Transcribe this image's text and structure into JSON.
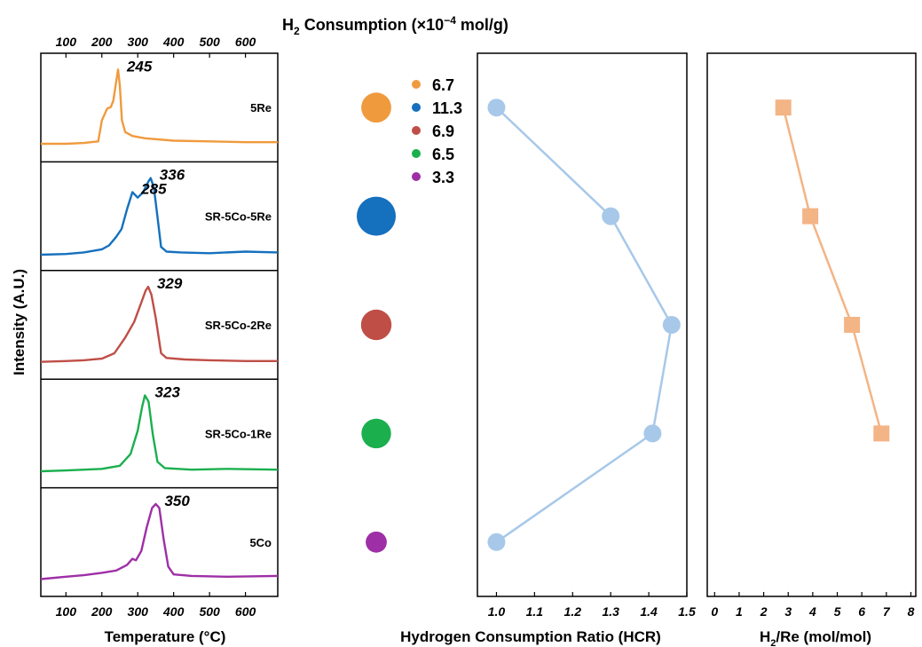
{
  "chart_data": [
    {
      "type": "line",
      "panel": "tpr",
      "title": "",
      "xlabel": "Temperature (°C)",
      "top_xlabel": "H2 Consumption (×10−4 mol/g)",
      "ylabel": "Intensity (A.U.)",
      "xlim": [
        30,
        690
      ],
      "x_ticks": [
        100,
        200,
        300,
        400,
        500,
        600
      ],
      "x_tick_labels": [
        "100",
        "200",
        "300",
        "400",
        "500",
        "600"
      ],
      "series": [
        {
          "name": "5Re",
          "color": "#F09A3E",
          "peaks": [
            {
              "x": 245,
              "label": "245"
            }
          ],
          "points": [
            [
              30,
              0.05
            ],
            [
              100,
              0.05
            ],
            [
              150,
              0.06
            ],
            [
              190,
              0.08
            ],
            [
              200,
              0.35
            ],
            [
              215,
              0.5
            ],
            [
              225,
              0.52
            ],
            [
              232,
              0.6
            ],
            [
              240,
              0.85
            ],
            [
              245,
              1.0
            ],
            [
              250,
              0.8
            ],
            [
              256,
              0.35
            ],
            [
              265,
              0.2
            ],
            [
              285,
              0.15
            ],
            [
              320,
              0.12
            ],
            [
              400,
              0.09
            ],
            [
              500,
              0.08
            ],
            [
              600,
              0.07
            ],
            [
              690,
              0.07
            ]
          ]
        },
        {
          "name": "SR-5Co-5Re",
          "color": "#1570BE",
          "peaks": [
            {
              "x": 285,
              "label": "285"
            },
            {
              "x": 336,
              "label": "336"
            }
          ],
          "points": [
            [
              30,
              0.02
            ],
            [
              100,
              0.03
            ],
            [
              150,
              0.05
            ],
            [
              200,
              0.09
            ],
            [
              220,
              0.14
            ],
            [
              240,
              0.25
            ],
            [
              255,
              0.35
            ],
            [
              270,
              0.6
            ],
            [
              285,
              0.82
            ],
            [
              300,
              0.75
            ],
            [
              315,
              0.82
            ],
            [
              330,
              0.96
            ],
            [
              336,
              1.0
            ],
            [
              345,
              0.88
            ],
            [
              355,
              0.5
            ],
            [
              365,
              0.12
            ],
            [
              380,
              0.06
            ],
            [
              420,
              0.05
            ],
            [
              500,
              0.04
            ],
            [
              600,
              0.06
            ],
            [
              690,
              0.05
            ]
          ]
        },
        {
          "name": "SR-5Co-2Re",
          "color": "#BF4E47",
          "peaks": [
            {
              "x": 329,
              "label": "329"
            }
          ],
          "points": [
            [
              30,
              0.04
            ],
            [
              100,
              0.05
            ],
            [
              150,
              0.06
            ],
            [
              200,
              0.08
            ],
            [
              235,
              0.15
            ],
            [
              265,
              0.35
            ],
            [
              290,
              0.55
            ],
            [
              310,
              0.8
            ],
            [
              322,
              0.95
            ],
            [
              329,
              1.0
            ],
            [
              338,
              0.9
            ],
            [
              350,
              0.6
            ],
            [
              365,
              0.15
            ],
            [
              380,
              0.09
            ],
            [
              430,
              0.07
            ],
            [
              500,
              0.06
            ],
            [
              600,
              0.05
            ],
            [
              690,
              0.05
            ]
          ]
        },
        {
          "name": "SR-5Co-1Re",
          "color": "#1BAF4E",
          "peaks": [
            {
              "x": 323,
              "label": "323"
            }
          ],
          "points": [
            [
              30,
              0.03
            ],
            [
              100,
              0.04
            ],
            [
              150,
              0.05
            ],
            [
              200,
              0.06
            ],
            [
              250,
              0.1
            ],
            [
              280,
              0.25
            ],
            [
              300,
              0.55
            ],
            [
              312,
              0.85
            ],
            [
              320,
              1.0
            ],
            [
              330,
              0.92
            ],
            [
              342,
              0.5
            ],
            [
              355,
              0.15
            ],
            [
              375,
              0.07
            ],
            [
              450,
              0.05
            ],
            [
              550,
              0.06
            ],
            [
              690,
              0.05
            ]
          ]
        },
        {
          "name": "5Co",
          "color": "#9E2FA6",
          "peaks": [
            {
              "x": 350,
              "label": "350"
            }
          ],
          "points": [
            [
              30,
              0.04
            ],
            [
              100,
              0.07
            ],
            [
              150,
              0.09
            ],
            [
              200,
              0.12
            ],
            [
              240,
              0.15
            ],
            [
              270,
              0.22
            ],
            [
              285,
              0.3
            ],
            [
              295,
              0.28
            ],
            [
              310,
              0.4
            ],
            [
              325,
              0.7
            ],
            [
              340,
              0.95
            ],
            [
              350,
              1.0
            ],
            [
              360,
              0.95
            ],
            [
              372,
              0.55
            ],
            [
              385,
              0.2
            ],
            [
              400,
              0.1
            ],
            [
              450,
              0.08
            ],
            [
              550,
              0.07
            ],
            [
              690,
              0.08
            ]
          ]
        }
      ]
    },
    {
      "type": "scatter",
      "panel": "h2-consumption",
      "legend": [
        "6.7",
        "11.3",
        "6.9",
        "6.5",
        "3.3"
      ],
      "legend_position": "top",
      "categories": [
        "5Re",
        "SR-5Co-5Re",
        "SR-5Co-2Re",
        "SR-5Co-1Re",
        "5Co"
      ],
      "values": [
        6.7,
        11.3,
        6.9,
        6.5,
        3.3
      ],
      "colors": [
        "#F09A3E",
        "#1570BE",
        "#BF4E47",
        "#1BAF4E",
        "#9E2FA6"
      ]
    },
    {
      "type": "line",
      "panel": "hcr",
      "xlabel": "Hydrogen Consumption Ratio (HCR)",
      "xlim": [
        0.95,
        1.5
      ],
      "x_ticks": [
        1.0,
        1.1,
        1.2,
        1.3,
        1.4,
        1.5
      ],
      "x_tick_labels": [
        "1.0",
        "1.1",
        "1.2",
        "1.3",
        "1.4",
        "1.5"
      ],
      "categories": [
        "5Re",
        "SR-5Co-5Re",
        "SR-5Co-2Re",
        "SR-5Co-1Re",
        "5Co"
      ],
      "values": [
        1.0,
        1.3,
        1.46,
        1.41,
        1.0
      ],
      "color": "#A7C8E9"
    },
    {
      "type": "line",
      "panel": "h2-re",
      "xlabel": "H2/Re (mol/mol)",
      "xlim": [
        -0.3,
        8.2
      ],
      "x_ticks": [
        0,
        1,
        2,
        3,
        4,
        5,
        6,
        7,
        8
      ],
      "x_tick_labels": [
        "0",
        "1",
        "2",
        "3",
        "4",
        "5",
        "6",
        "7",
        "8"
      ],
      "categories": [
        "5Re",
        "SR-5Co-5Re",
        "SR-5Co-2Re",
        "SR-5Co-1Re"
      ],
      "values": [
        2.8,
        3.9,
        5.6,
        6.8
      ],
      "color": "#F3B486"
    }
  ]
}
